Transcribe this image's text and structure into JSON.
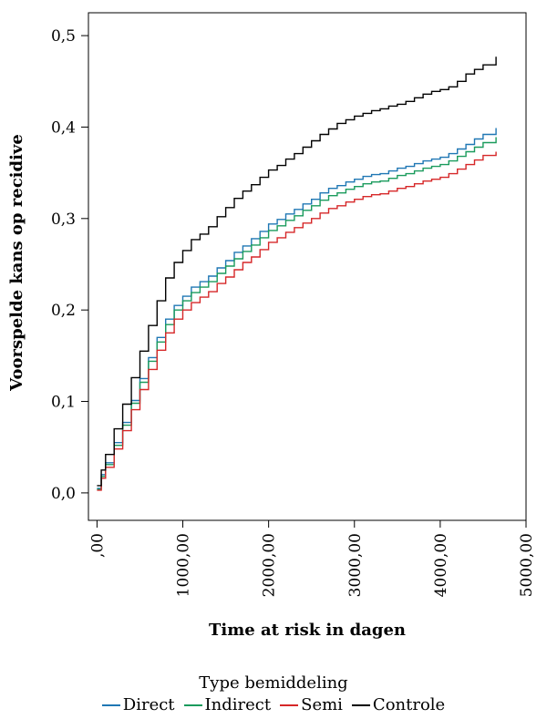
{
  "chart_data": {
    "type": "line",
    "title": "",
    "xlabel": "Time at risk in dagen",
    "ylabel": "Voorspelde kans op recidive",
    "xlim": [
      -100,
      5000
    ],
    "ylim": [
      -0.03,
      0.525
    ],
    "x_ticks": [
      0,
      1000,
      2000,
      3000,
      4000,
      5000
    ],
    "x_tick_labels": [
      ",00",
      "1000,00",
      "2000,00",
      "3000,00",
      "4000,00",
      "5000,00"
    ],
    "y_ticks": [
      0.0,
      0.1,
      0.2,
      0.3,
      0.4,
      0.5
    ],
    "y_tick_labels": [
      "0,0",
      "0,1",
      "0,2",
      "0,3",
      "0,4",
      "0,5"
    ],
    "legend_title": "Type bemiddeling",
    "legend_position": "bottom",
    "series": [
      {
        "name": "Direct",
        "color": "#1f77b4",
        "x": [
          0,
          50,
          100,
          200,
          300,
          400,
          500,
          600,
          700,
          800,
          900,
          1000,
          1100,
          1200,
          1300,
          1400,
          1500,
          1600,
          1700,
          1800,
          1900,
          2000,
          2100,
          2200,
          2300,
          2400,
          2500,
          2600,
          2700,
          2800,
          2900,
          3000,
          3100,
          3200,
          3300,
          3400,
          3500,
          3600,
          3700,
          3800,
          3900,
          4000,
          4100,
          4200,
          4300,
          4400,
          4500,
          4650
        ],
        "y": [
          0.005,
          0.02,
          0.033,
          0.055,
          0.077,
          0.101,
          0.125,
          0.148,
          0.17,
          0.19,
          0.205,
          0.215,
          0.225,
          0.231,
          0.237,
          0.246,
          0.254,
          0.263,
          0.27,
          0.278,
          0.286,
          0.294,
          0.299,
          0.305,
          0.31,
          0.316,
          0.321,
          0.328,
          0.333,
          0.336,
          0.34,
          0.343,
          0.346,
          0.348,
          0.349,
          0.352,
          0.355,
          0.357,
          0.36,
          0.363,
          0.365,
          0.367,
          0.371,
          0.376,
          0.381,
          0.387,
          0.392,
          0.399
        ]
      },
      {
        "name": "Indirect",
        "color": "#1a9b5c",
        "x": [
          0,
          50,
          100,
          200,
          300,
          400,
          500,
          600,
          700,
          800,
          900,
          1000,
          1100,
          1200,
          1300,
          1400,
          1500,
          1600,
          1700,
          1800,
          1900,
          2000,
          2100,
          2200,
          2300,
          2400,
          2500,
          2600,
          2700,
          2800,
          2900,
          3000,
          3100,
          3200,
          3300,
          3400,
          3500,
          3600,
          3700,
          3800,
          3900,
          4000,
          4100,
          4200,
          4300,
          4400,
          4500,
          4650
        ],
        "y": [
          0.004,
          0.018,
          0.031,
          0.052,
          0.074,
          0.098,
          0.121,
          0.144,
          0.165,
          0.184,
          0.2,
          0.21,
          0.219,
          0.225,
          0.231,
          0.24,
          0.248,
          0.256,
          0.264,
          0.271,
          0.279,
          0.287,
          0.292,
          0.298,
          0.303,
          0.309,
          0.314,
          0.32,
          0.325,
          0.328,
          0.332,
          0.335,
          0.338,
          0.34,
          0.341,
          0.344,
          0.347,
          0.349,
          0.352,
          0.355,
          0.357,
          0.359,
          0.363,
          0.368,
          0.373,
          0.378,
          0.383,
          0.389
        ]
      },
      {
        "name": "Semi",
        "color": "#d62728",
        "x": [
          0,
          50,
          100,
          200,
          300,
          400,
          500,
          600,
          700,
          800,
          900,
          1000,
          1100,
          1200,
          1300,
          1400,
          1500,
          1600,
          1700,
          1800,
          1900,
          2000,
          2100,
          2200,
          2300,
          2400,
          2500,
          2600,
          2700,
          2800,
          2900,
          3000,
          3100,
          3200,
          3300,
          3400,
          3500,
          3600,
          3700,
          3800,
          3900,
          4000,
          4100,
          4200,
          4300,
          4400,
          4500,
          4650
        ],
        "y": [
          0.003,
          0.016,
          0.028,
          0.048,
          0.068,
          0.091,
          0.113,
          0.135,
          0.156,
          0.175,
          0.19,
          0.2,
          0.208,
          0.214,
          0.22,
          0.229,
          0.236,
          0.244,
          0.252,
          0.258,
          0.266,
          0.274,
          0.279,
          0.285,
          0.29,
          0.295,
          0.3,
          0.306,
          0.311,
          0.314,
          0.318,
          0.321,
          0.324,
          0.326,
          0.327,
          0.33,
          0.333,
          0.335,
          0.338,
          0.341,
          0.343,
          0.345,
          0.349,
          0.354,
          0.359,
          0.364,
          0.369,
          0.373
        ]
      },
      {
        "name": "Controle",
        "color": "#000000",
        "x": [
          0,
          50,
          100,
          200,
          300,
          400,
          500,
          600,
          700,
          800,
          900,
          1000,
          1100,
          1200,
          1300,
          1400,
          1500,
          1600,
          1700,
          1800,
          1900,
          2000,
          2100,
          2200,
          2300,
          2400,
          2500,
          2600,
          2700,
          2800,
          2900,
          3000,
          3100,
          3200,
          3300,
          3400,
          3500,
          3600,
          3700,
          3800,
          3900,
          4000,
          4100,
          4200,
          4300,
          4400,
          4500,
          4650
        ],
        "y": [
          0.008,
          0.025,
          0.042,
          0.07,
          0.097,
          0.126,
          0.155,
          0.183,
          0.21,
          0.235,
          0.252,
          0.265,
          0.277,
          0.283,
          0.291,
          0.302,
          0.312,
          0.322,
          0.33,
          0.337,
          0.345,
          0.353,
          0.358,
          0.365,
          0.371,
          0.378,
          0.385,
          0.392,
          0.398,
          0.404,
          0.408,
          0.412,
          0.415,
          0.418,
          0.42,
          0.423,
          0.425,
          0.428,
          0.432,
          0.436,
          0.439,
          0.441,
          0.444,
          0.45,
          0.458,
          0.463,
          0.468,
          0.477
        ]
      }
    ]
  }
}
